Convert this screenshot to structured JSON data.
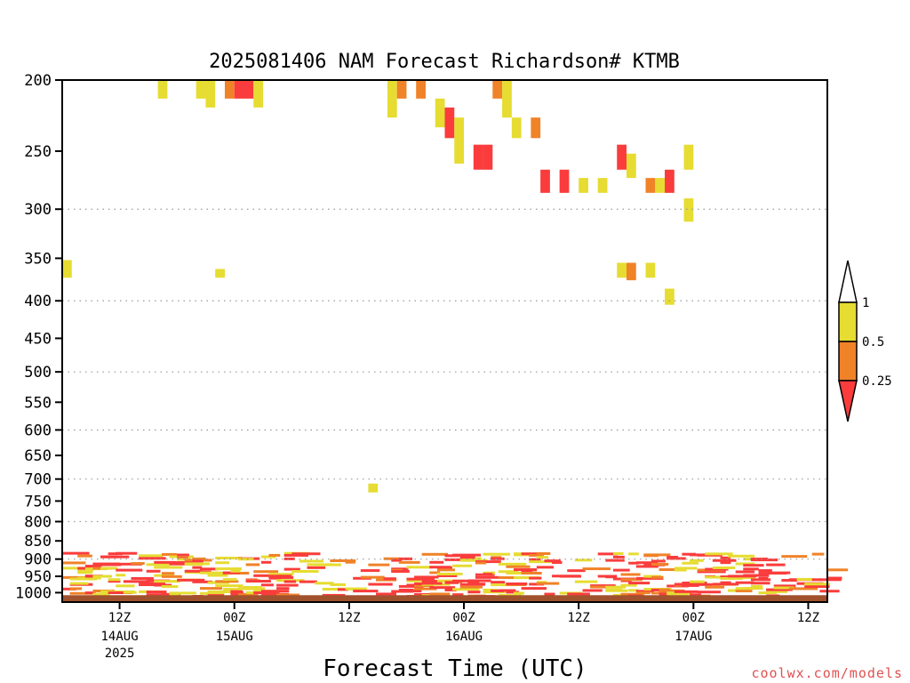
{
  "chart_data": {
    "type": "heatmap",
    "title": "2025081406 NAM Forecast Richardson# KTMB",
    "xlabel": "Forecast Time (UTC)",
    "credit": "coolwx.com/models",
    "y_axis": {
      "scale": "log-pressure",
      "inverted": true,
      "unit": "hPa",
      "ticks": [
        200,
        250,
        300,
        350,
        400,
        450,
        500,
        550,
        600,
        650,
        700,
        750,
        800,
        850,
        900,
        950,
        1000
      ],
      "gridlines_dotted": [
        300,
        400,
        500,
        600,
        700,
        800,
        900
      ],
      "range": [
        200,
        1030
      ]
    },
    "x_axis": {
      "range_hours": [
        6,
        76
      ],
      "ticks": [
        {
          "hour": 12,
          "label": "12Z",
          "date": "14AUG",
          "year": "2025"
        },
        {
          "hour": 24,
          "label": "00Z",
          "date": "15AUG",
          "year": ""
        },
        {
          "hour": 36,
          "label": "12Z",
          "date": "",
          "year": ""
        },
        {
          "hour": 48,
          "label": "00Z",
          "date": "16AUG",
          "year": ""
        },
        {
          "hour": 60,
          "label": "12Z",
          "date": "",
          "year": ""
        },
        {
          "hour": 72,
          "label": "00Z",
          "date": "17AUG",
          "year": ""
        },
        {
          "hour": 84,
          "label": "12Z",
          "date": "",
          "year": ""
        }
      ]
    },
    "legend": {
      "placement": "right",
      "boundaries": [
        "1",
        "0.5",
        "0.25"
      ],
      "bins": [
        {
          "range": "> 1",
          "color": "#ffffff"
        },
        {
          "range": "0.5 - 1",
          "color": "#e6dc32"
        },
        {
          "range": "0.25 - 0.5",
          "color": "#f08228"
        },
        {
          "range": "< 0.25",
          "color": "#fa3c3c"
        }
      ]
    },
    "colors": {
      "yellow": "#e6dc32",
      "orange": "#f08228",
      "red": "#fa3c3c",
      "ground": "#a0522d"
    },
    "cells": [
      {
        "h": 16,
        "p": 200,
        "p2": 212,
        "c": "yellow"
      },
      {
        "h": 20,
        "p": 200,
        "p2": 212,
        "c": "yellow"
      },
      {
        "h": 21,
        "p": 200,
        "p2": 218,
        "c": "yellow"
      },
      {
        "h": 23,
        "p": 200,
        "p2": 212,
        "c": "orange"
      },
      {
        "h": 24,
        "p": 200,
        "p2": 212,
        "c": "red"
      },
      {
        "h": 25,
        "p": 200,
        "p2": 212,
        "c": "red"
      },
      {
        "h": 26,
        "p": 200,
        "p2": 218,
        "c": "yellow"
      },
      {
        "h": 40,
        "p": 200,
        "p2": 225,
        "c": "yellow"
      },
      {
        "h": 41,
        "p": 200,
        "p2": 212,
        "c": "orange"
      },
      {
        "h": 43,
        "p": 200,
        "p2": 212,
        "c": "orange"
      },
      {
        "h": 45,
        "p": 212,
        "p2": 232,
        "c": "yellow"
      },
      {
        "h": 46,
        "p": 218,
        "p2": 240,
        "c": "red"
      },
      {
        "h": 47,
        "p": 225,
        "p2": 260,
        "c": "yellow"
      },
      {
        "h": 49,
        "p": 245,
        "p2": 265,
        "c": "red"
      },
      {
        "h": 50,
        "p": 245,
        "p2": 265,
        "c": "red"
      },
      {
        "h": 51,
        "p": 200,
        "p2": 212,
        "c": "orange"
      },
      {
        "h": 52,
        "p": 200,
        "p2": 225,
        "c": "yellow"
      },
      {
        "h": 53,
        "p": 225,
        "p2": 240,
        "c": "yellow"
      },
      {
        "h": 55,
        "p": 225,
        "p2": 240,
        "c": "orange"
      },
      {
        "h": 56,
        "p": 265,
        "p2": 285,
        "c": "red"
      },
      {
        "h": 58,
        "p": 265,
        "p2": 285,
        "c": "red"
      },
      {
        "h": 60,
        "p": 272,
        "p2": 285,
        "c": "yellow"
      },
      {
        "h": 62,
        "p": 272,
        "p2": 285,
        "c": "yellow"
      },
      {
        "h": 64,
        "p": 245,
        "p2": 265,
        "c": "red"
      },
      {
        "h": 65,
        "p": 252,
        "p2": 272,
        "c": "yellow"
      },
      {
        "h": 67,
        "p": 272,
        "p2": 285,
        "c": "orange"
      },
      {
        "h": 68,
        "p": 272,
        "p2": 285,
        "c": "yellow"
      },
      {
        "h": 69,
        "p": 265,
        "p2": 285,
        "c": "red"
      },
      {
        "h": 71,
        "p": 245,
        "p2": 265,
        "c": "yellow"
      },
      {
        "h": 71,
        "p": 290,
        "p2": 312,
        "c": "yellow"
      },
      {
        "h": 6,
        "p": 352,
        "p2": 372,
        "c": "yellow"
      },
      {
        "h": 22,
        "p": 362,
        "p2": 372,
        "c": "yellow"
      },
      {
        "h": 64,
        "p": 355,
        "p2": 372,
        "c": "yellow"
      },
      {
        "h": 65,
        "p": 355,
        "p2": 375,
        "c": "orange"
      },
      {
        "h": 67,
        "p": 355,
        "p2": 372,
        "c": "yellow"
      },
      {
        "h": 69,
        "p": 385,
        "p2": 405,
        "c": "yellow"
      },
      {
        "h": 38,
        "p": 710,
        "p2": 730,
        "c": "yellow"
      }
    ],
    "surface_top_pressure": 1008
  }
}
